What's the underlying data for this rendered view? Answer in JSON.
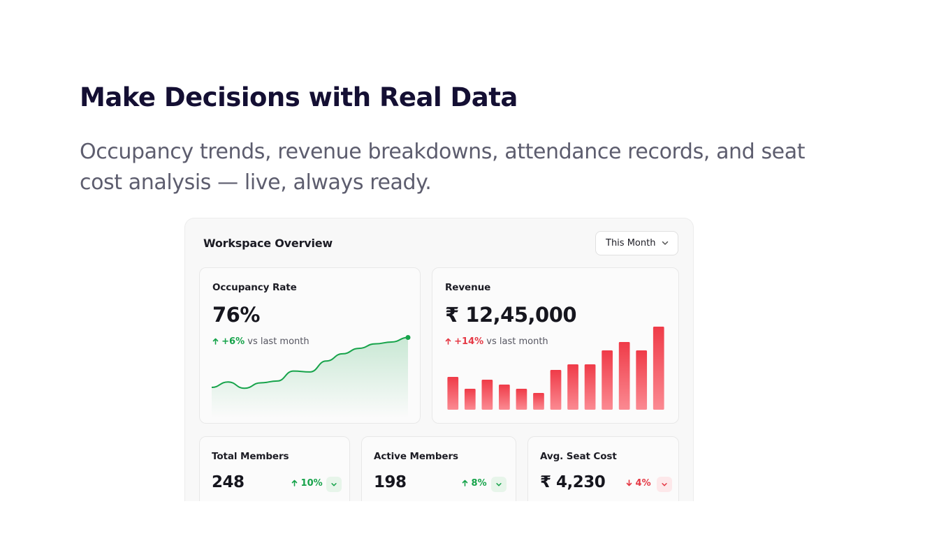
{
  "hero": {
    "title": "Make Decisions with Real Data",
    "subtitle": "Occupancy trends, revenue breakdowns, attendance records, and seat cost analysis — live, always ready."
  },
  "overview": {
    "title": "Workspace Overview",
    "range": "This Month"
  },
  "occupancy": {
    "label": "Occupancy Rate",
    "value": "76%",
    "delta": "+6%",
    "comparison": "vs last month",
    "color": "#16a34a"
  },
  "revenue": {
    "label": "Revenue",
    "value": "₹ 12,45,000",
    "delta": "+14%",
    "comparison": "vs last month",
    "color": "#f0404d"
  },
  "stats": {
    "total": {
      "label": "Total Members",
      "value": "248",
      "delta": "10%",
      "direction": "up"
    },
    "active": {
      "label": "Active Members",
      "value": "198",
      "delta": "8%",
      "direction": "up"
    },
    "cost": {
      "label": "Avg. Seat Cost",
      "value": "₹ 4,230",
      "delta": "4%",
      "direction": "down"
    }
  },
  "icons": {
    "dropdown": "chevron-down-icon",
    "up": "arrow-up-icon",
    "down": "arrow-down-icon"
  },
  "chart_data": [
    {
      "type": "area",
      "title": "",
      "series": [
        {
          "values": [
            30,
            36,
            29,
            35,
            37,
            48,
            47,
            59,
            67,
            73,
            78,
            80,
            85
          ]
        }
      ],
      "ylim": [
        0,
        100
      ]
    },
    {
      "type": "bar",
      "title": "",
      "series": [
        {
          "values": [
            47,
            30,
            43,
            36,
            30,
            24,
            57,
            65,
            65,
            85,
            97,
            85,
            119
          ]
        }
      ],
      "ylim": [
        0,
        130
      ]
    }
  ]
}
